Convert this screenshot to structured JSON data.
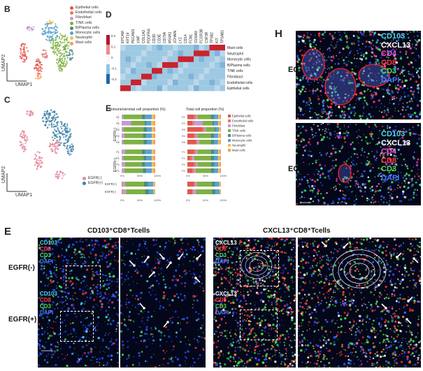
{
  "panels": {
    "b": {
      "letter": "B",
      "xlabel": "UMAP1",
      "ylabel": "UMAP2",
      "legend": [
        {
          "label": "Epithelial cells",
          "color": "#e0584c"
        },
        {
          "label": "Endothelial cells",
          "color": "#e07a70"
        },
        {
          "label": "Fibroblast",
          "color": "#c59ad6"
        },
        {
          "label": "T/NK cells",
          "color": "#7fb143"
        },
        {
          "label": "B/Plasma cells",
          "color": "#4e8c7a"
        },
        {
          "label": "Monocytic cells",
          "color": "#5aa3cf"
        },
        {
          "label": "Neutrophil",
          "color": "#f2c14e"
        },
        {
          "label": "Mast cells",
          "color": "#f39c5a"
        }
      ]
    },
    "c": {
      "letter": "C",
      "xlabel": "UMAP1",
      "ylabel": "UMAP2",
      "legend": [
        {
          "label": "EGFR(-)",
          "color": "#e5889a"
        },
        {
          "label": "EGFR(+)",
          "color": "#3d7fa6"
        }
      ]
    },
    "d": {
      "letter": "D",
      "genes": [
        "EPCAM",
        "KRT19",
        "PECAM1",
        "VWF",
        "COL1A2",
        "PDGFRA",
        "CD3D",
        "CD3E",
        "CD79A",
        "MS4A1",
        "JCHAIN",
        "LYZ",
        "CD14",
        "FCN1",
        "S100A9",
        "FCGR3B",
        "CSF3R",
        "TPSB2",
        "KIT",
        "TPSAB1"
      ],
      "cells": [
        "Mast cells",
        "Neutrophil",
        "Monocytic cells",
        "B/Plasma cells",
        "T/NK cells",
        "Fibroblast",
        "Endothelial cells",
        "Epithelial cells"
      ],
      "scale_ticks": [
        "0.2",
        "0.1",
        "0",
        "-0.1",
        "-0.2"
      ]
    },
    "e_chart": {
      "letter": "E",
      "title_left": "Immune/stromal cell proportion (%)",
      "title_right": "Total cell proportion (%)",
      "group_neg": "EGFR(-)",
      "group_pos": "EGFR(+)",
      "x_ticks": [
        "0%",
        "50%",
        "100%"
      ],
      "summary_labels": [
        "EGFR(+)",
        "EGFR(-)"
      ]
    },
    "e_images": {
      "letter": "E",
      "title_left": "CD103⁺CD8⁺Tcells",
      "title_right": "CXCL13⁺CD8⁺Tcells",
      "row_neg": "EGFR(-)",
      "row_pos": "EGFR(+)",
      "markers_cd103": [
        {
          "text": "CD103",
          "color": "#4fd8e6"
        },
        {
          "text": "CD8",
          "color": "#ff3b3b"
        },
        {
          "text": "CD3",
          "color": "#4be04b"
        },
        {
          "text": "DAPI",
          "color": "#4b7bff"
        }
      ],
      "markers_cxcl13": [
        {
          "text": "CXCL13",
          "color": "#ffffff"
        },
        {
          "text": "CD8",
          "color": "#ff3b3b"
        },
        {
          "text": "CD3",
          "color": "#4be04b"
        },
        {
          "text": "DAPI",
          "color": "#4b7bff"
        }
      ]
    },
    "h": {
      "letter": "H",
      "row_neg": "EGFR(-)",
      "row_pos": "EGFR(+)",
      "markers": [
        {
          "text": "CD103",
          "color": "#4fd8e6"
        },
        {
          "text": "CXCL13",
          "color": "#ffffff"
        },
        {
          "text": "CD4",
          "color": "#ff4fd8"
        },
        {
          "text": "CD8",
          "color": "#ff3b3b"
        },
        {
          "text": "CD3",
          "color": "#4be04b"
        },
        {
          "text": "DAPI",
          "color": "#4b7bff"
        }
      ]
    }
  },
  "chart_data": [
    {
      "type": "stacked-bar",
      "title": "Immune/stromal cell proportion (%)",
      "categories": [
        "R1",
        "R2",
        "R3",
        "R4",
        "R5",
        "P1",
        "P2",
        "P3",
        "P4"
      ],
      "series_colors": [
        "#e0584c",
        "#e07a70",
        "#c59ad6",
        "#7fb143",
        "#4e8c7a",
        "#5aa3cf",
        "#f2c14e",
        "#f39c5a"
      ],
      "values_percent": [
        [
          0,
          0,
          5,
          55,
          10,
          20,
          5,
          5
        ],
        [
          0,
          0,
          28,
          40,
          5,
          15,
          7,
          5
        ],
        [
          0,
          0,
          5,
          60,
          10,
          15,
          5,
          5
        ],
        [
          0,
          0,
          8,
          55,
          10,
          17,
          5,
          5
        ],
        [
          0,
          0,
          5,
          60,
          10,
          15,
          5,
          5
        ],
        [
          0,
          0,
          10,
          50,
          10,
          20,
          5,
          5
        ],
        [
          0,
          0,
          5,
          60,
          8,
          17,
          5,
          5
        ],
        [
          0,
          0,
          10,
          50,
          10,
          20,
          5,
          5
        ],
        [
          0,
          0,
          8,
          55,
          10,
          17,
          5,
          5
        ]
      ]
    },
    {
      "type": "stacked-bar",
      "title": "Total cell proportion (%)",
      "categories": [
        "R1",
        "R2",
        "R3",
        "R4",
        "R5",
        "P1",
        "P2",
        "P3",
        "P4"
      ],
      "series_colors": [
        "#e0584c",
        "#e07a70",
        "#c59ad6",
        "#7fb143",
        "#4e8c7a",
        "#5aa3cf",
        "#f2c14e",
        "#f39c5a"
      ],
      "values_percent": [
        [
          20,
          5,
          5,
          40,
          10,
          12,
          4,
          4
        ],
        [
          15,
          5,
          25,
          30,
          5,
          12,
          4,
          4
        ],
        [
          45,
          5,
          5,
          25,
          5,
          9,
          3,
          3
        ],
        [
          20,
          5,
          5,
          40,
          10,
          12,
          4,
          4
        ],
        [
          25,
          5,
          5,
          35,
          10,
          12,
          4,
          4
        ],
        [
          20,
          5,
          5,
          40,
          10,
          12,
          4,
          4
        ],
        [
          10,
          5,
          5,
          50,
          10,
          12,
          4,
          4
        ],
        [
          20,
          5,
          5,
          40,
          10,
          12,
          4,
          4
        ],
        [
          15,
          5,
          5,
          45,
          10,
          12,
          4,
          4
        ]
      ]
    }
  ]
}
